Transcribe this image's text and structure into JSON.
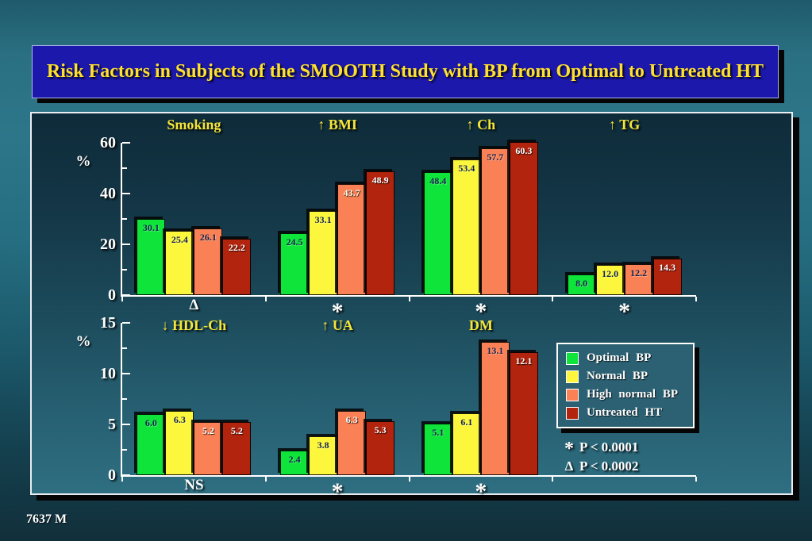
{
  "slide": {
    "title": "Risk Factors in Subjects of the SMOOTH Study with BP from Optimal to Untreated HT",
    "footer": "7637 M"
  },
  "legend": {
    "items": [
      {
        "label": "Optimal BP",
        "color": "#0ee439"
      },
      {
        "label": "Normal BP",
        "color": "#fcf73c"
      },
      {
        "label": "High normal BP",
        "color": "#f98155"
      },
      {
        "label": "Untreated HT",
        "color": "#b2240e"
      }
    ]
  },
  "notes": [
    {
      "symbol": "*",
      "text": "P < 0.0001"
    },
    {
      "symbol": "Δ",
      "text": "P < 0.0002"
    }
  ],
  "chart_data": [
    {
      "type": "bar",
      "panel": "top",
      "ylabel": "%",
      "ylim": [
        0,
        60
      ],
      "yticks": [
        0,
        20,
        40,
        60
      ],
      "yminorticks": [
        10,
        30,
        50
      ],
      "categories": [
        "Smoking",
        "↑ BMI",
        "↑ Ch",
        "↑ TG"
      ],
      "significance": [
        "Δ",
        "*",
        "*",
        "*"
      ],
      "series": [
        {
          "name": "Optimal BP",
          "color": "#0ee439",
          "label_color": "#13224f",
          "values": [
            30.1,
            24.5,
            48.4,
            8.0
          ]
        },
        {
          "name": "Normal BP",
          "color": "#fcf73c",
          "label_color": "#13224f",
          "values": [
            25.4,
            33.1,
            53.4,
            12.0
          ]
        },
        {
          "name": "High normal BP",
          "color": "#f98155",
          "label_color": "#13224f",
          "label_colors": [
            "#13224f",
            "#fff9e8",
            "#13224f",
            "#13224f"
          ],
          "values": [
            26.1,
            43.7,
            57.7,
            12.2
          ]
        },
        {
          "name": "Untreated HT",
          "color": "#b2240e",
          "label_color": "#ffffff",
          "values": [
            22.2,
            48.9,
            60.3,
            14.3
          ]
        }
      ]
    },
    {
      "type": "bar",
      "panel": "bottom",
      "ylabel": "%",
      "ylim": [
        0,
        15
      ],
      "yticks": [
        0,
        5,
        10,
        15
      ],
      "yminorticks": [
        2.5,
        7.5,
        12.5
      ],
      "categories": [
        "↓ HDL-Ch",
        "↑ UA",
        "DM"
      ],
      "significance": [
        "NS",
        "*",
        "*"
      ],
      "series": [
        {
          "name": "Optimal BP",
          "color": "#0ee439",
          "label_color": "#13224f",
          "values": [
            6.0,
            2.4,
            5.1
          ]
        },
        {
          "name": "Normal BP",
          "color": "#fcf73c",
          "label_color": "#13224f",
          "values": [
            6.3,
            3.8,
            6.1
          ]
        },
        {
          "name": "High normal BP",
          "color": "#f98155",
          "label_color": "#13224f",
          "label_colors": [
            "#ffffff",
            "#ffffff",
            "#13224f"
          ],
          "values": [
            5.2,
            6.3,
            13.1
          ]
        },
        {
          "name": "Untreated HT",
          "color": "#b2240e",
          "label_color": "#ffffff",
          "values": [
            5.2,
            5.3,
            12.1
          ]
        }
      ]
    }
  ]
}
